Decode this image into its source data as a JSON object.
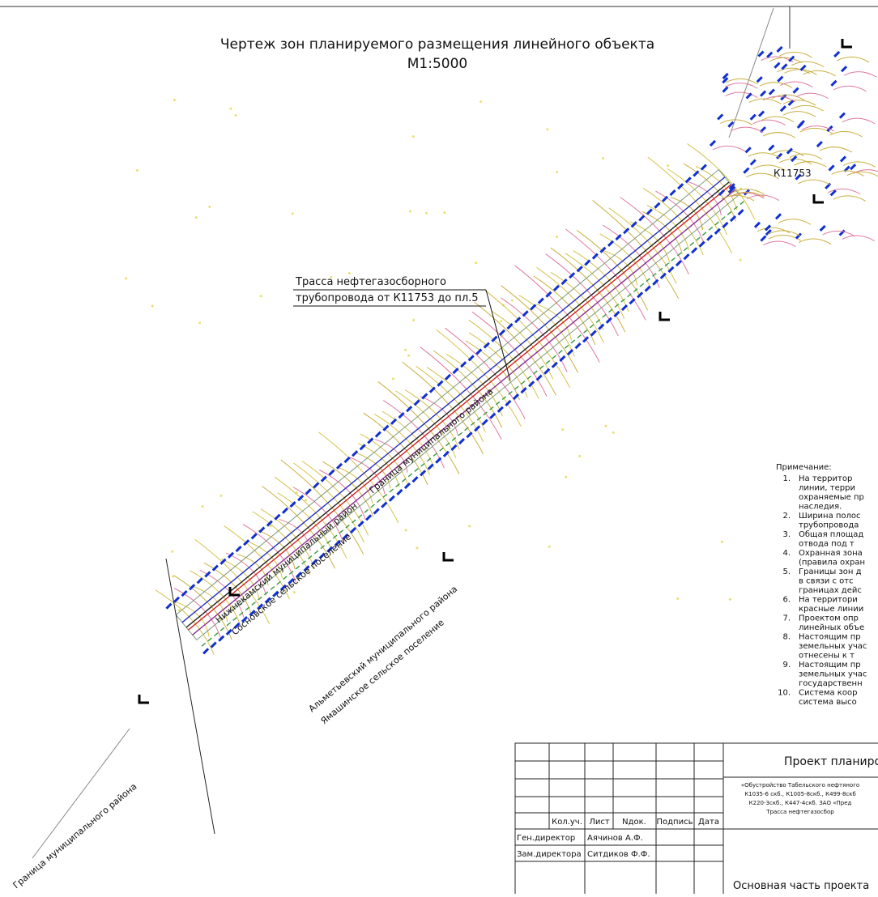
{
  "title": {
    "line1": "Чертеж  зон планируемого размещения линейного объекта",
    "line2": "М1:5000"
  },
  "labels": {
    "route": [
      "Трасса нефтегазосборного",
      "трубопровода от К11753 до пл.5"
    ],
    "node": "К11753",
    "boundary_upper": "Граница муниципального района",
    "boundary_lower": "Граница муниципального района",
    "district_left": [
      "Нижнекамский муниципальный район",
      "Сосновское сельское поселение"
    ],
    "district_right": [
      "Альметьевский муниципального района",
      "Ямашинское сельское поселение"
    ]
  },
  "notes": {
    "heading": "Примечание:",
    "items": [
      {
        "num": "1.",
        "lines": [
          "На территор",
          "линии, терри",
          "охраняемые пр",
          "наследия."
        ]
      },
      {
        "num": "2.",
        "lines": [
          "Ширина полос",
          "трубопровода"
        ]
      },
      {
        "num": "3.",
        "lines": [
          "Общая площад",
          "отвода под т"
        ]
      },
      {
        "num": "4.",
        "lines": [
          "Охранная зона",
          "(правила охран"
        ]
      },
      {
        "num": "5.",
        "lines": [
          "Границы зон д",
          "в связи с отс",
          "границах дейс"
        ]
      },
      {
        "num": "6.",
        "lines": [
          "На территори",
          "красные линии"
        ]
      },
      {
        "num": "7.",
        "lines": [
          "Проектом опр",
          "линейных объе"
        ]
      },
      {
        "num": "8.",
        "lines": [
          "Настоящим пр",
          "земельных учас",
          "отнесены к т"
        ]
      },
      {
        "num": "9.",
        "lines": [
          "Настоящим пр",
          "земельных учас",
          "государственн"
        ]
      },
      {
        "num": "10.",
        "lines": [
          "Система коор",
          "система высо"
        ]
      }
    ]
  },
  "title_block": {
    "project": "Проект планиров",
    "description": [
      "«Обустройство Табельского нефтяного",
      "К1035-6 скб., К1005-8скб., К499-8скб",
      "К220-3скб., К447-4скб. ЗАО «Пред",
      "Трасса нефтегазосбор"
    ],
    "header": [
      "Кол.уч.",
      "Лист",
      "Nдок.",
      "Подпись",
      "Дата"
    ],
    "signers": [
      [
        "Ген.директор",
        "Аячинов А.Ф."
      ],
      [
        "Зам.директора",
        "Ситдиков Ф.Ф."
      ]
    ],
    "part": "Основная часть проекта"
  }
}
